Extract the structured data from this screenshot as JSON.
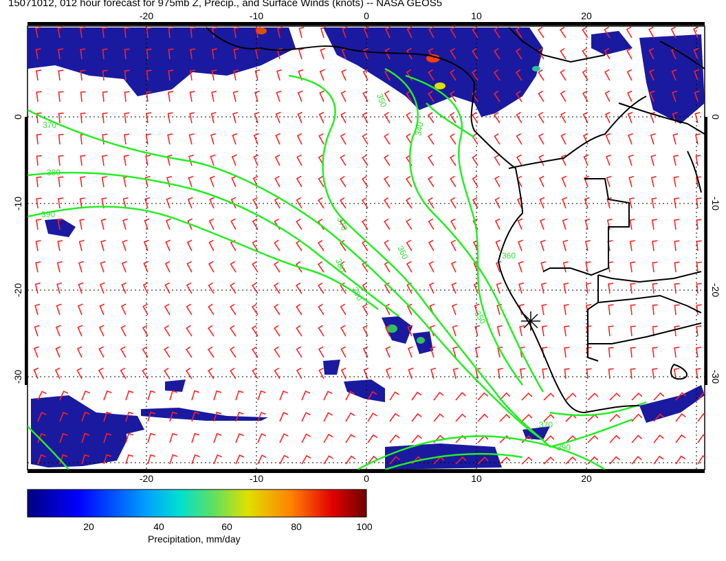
{
  "title": "15071012, 012 hour forecast for 975mb Z, Precip., and Surface Winds (knots) -- NASA GEOS5",
  "map": {
    "lon_ticks_top": [
      "-20",
      "-10",
      "0",
      "10",
      "20"
    ],
    "lon_ticks_bottom": [
      "-20",
      "-10",
      "0",
      "10",
      "20"
    ],
    "lat_ticks_left": [
      "0",
      "-10",
      "-20",
      "-30"
    ],
    "lat_ticks_right": [
      "0",
      "-10",
      "-20",
      "-30"
    ],
    "contour_labels": [
      "370",
      "380",
      "390",
      "380",
      "370",
      "360",
      "350",
      "340",
      "390",
      "360",
      "350",
      "370",
      "390"
    ],
    "contour_color": "#33dd33",
    "barb_color": "#ff2020",
    "coast_color": "#000000"
  },
  "colorbar": {
    "label": "Precipitation, mm/day",
    "ticks": [
      "20",
      "40",
      "60",
      "80",
      "100"
    ],
    "colors": [
      "#00008b",
      "#0000ff",
      "#0080ff",
      "#00ffff",
      "#80ff80",
      "#ffff00",
      "#ff8000",
      "#ff0000",
      "#800000"
    ]
  }
}
